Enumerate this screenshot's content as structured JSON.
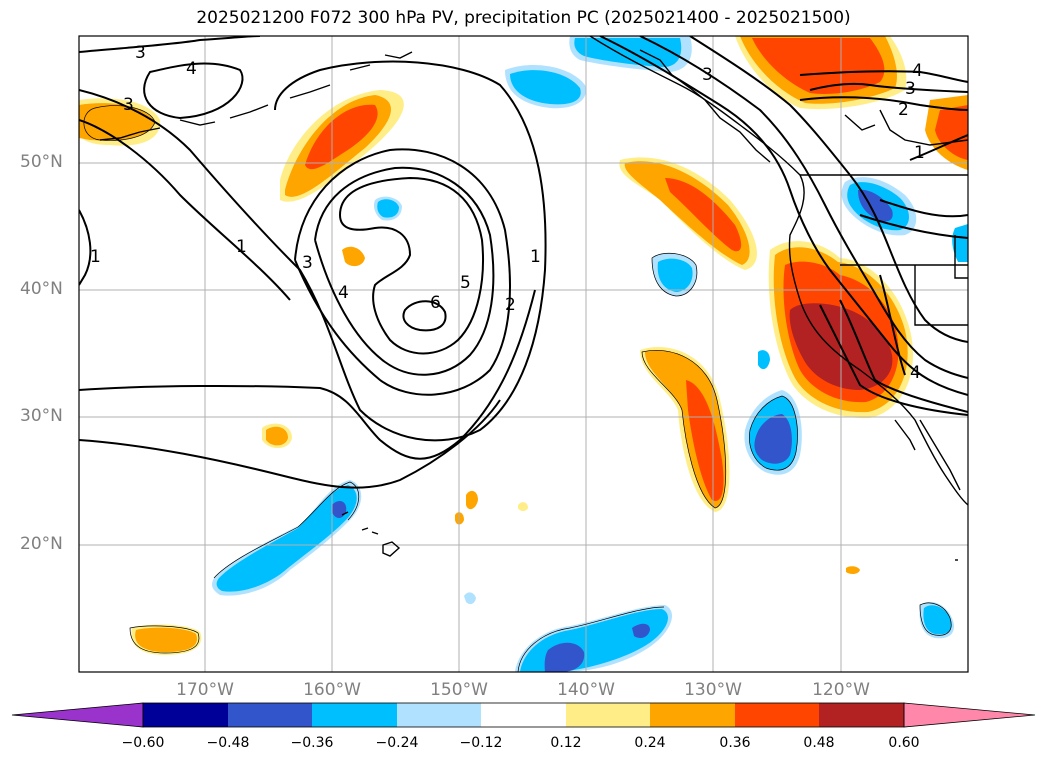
{
  "title": "2025021200 F072 300 hPa PV, precipitation PC (2025021400 - 2025021500)",
  "lat_labels": [
    "50°N",
    "40°N",
    "30°N",
    "20°N"
  ],
  "lon_labels": [
    "170°W",
    "160°W",
    "150°W",
    "140°W",
    "130°W",
    "120°W"
  ],
  "colorbar": {
    "colors": [
      "#9933cc",
      "#000099",
      "#3355cc",
      "#00bfff",
      "#b0e2ff",
      "#ffffff",
      "#ffee88",
      "#ffa500",
      "#ff4500",
      "#b22222",
      "#ff88aa"
    ],
    "ticks": [
      "−0.60",
      "−0.48",
      "−0.36",
      "−0.24",
      "−0.12",
      "0.12",
      "0.24",
      "0.36",
      "0.48",
      "0.60"
    ]
  },
  "contour_labels": [
    "3",
    "4",
    "3",
    "1",
    "1",
    "3",
    "4",
    "6",
    "5",
    "2",
    "1",
    "3",
    "4",
    "3",
    "2",
    "1",
    "4"
  ]
}
